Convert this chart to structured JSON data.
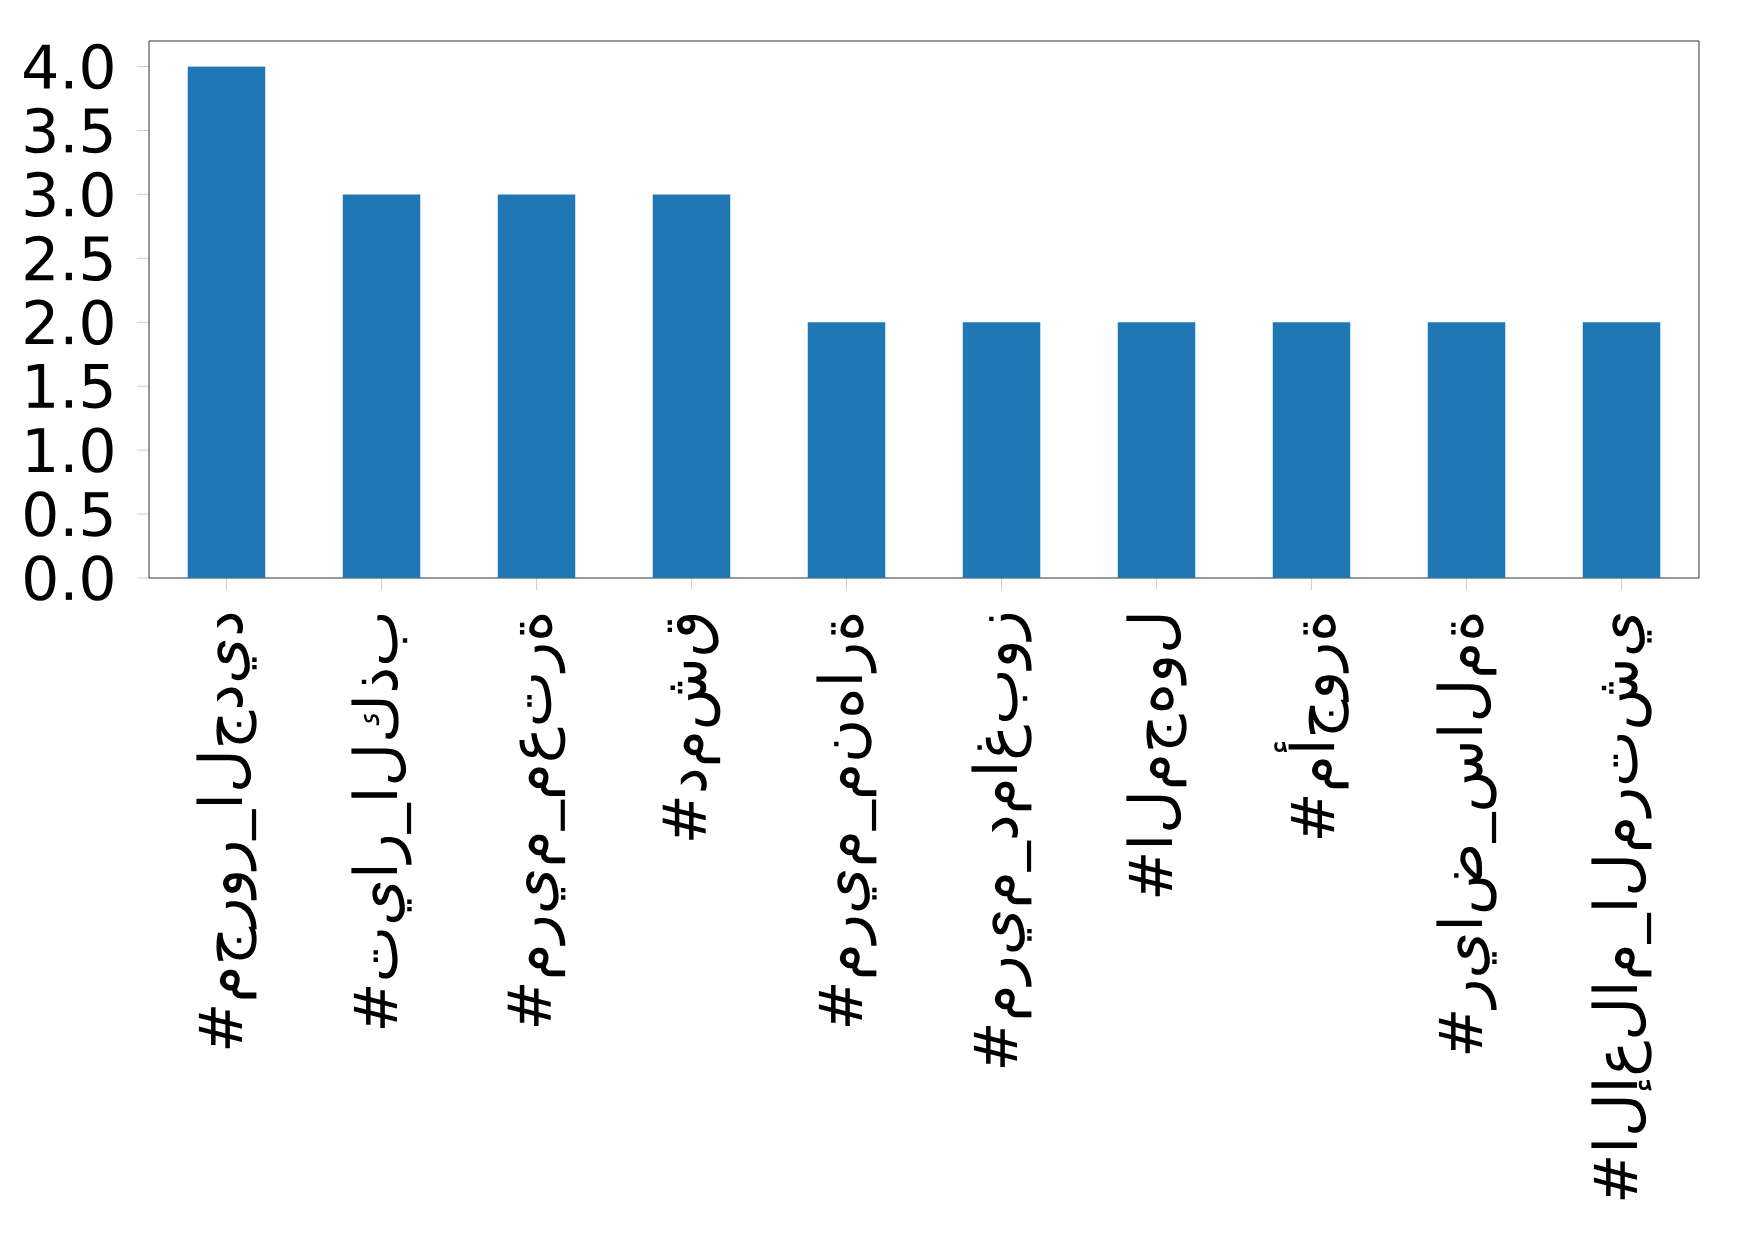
{
  "chart_data": {
    "type": "bar",
    "categories": [
      "#مجرور_الجديد",
      "#تيار_الكذب",
      "#مريم_معترة",
      "#دمشق",
      "#مريم_منهارة",
      "#مريم_دماغبوز",
      "#المجهول",
      "#مأجورة",
      "#رياض_سالمة",
      "#الإعلام_المرتشي"
    ],
    "values": [
      4,
      3,
      3,
      3,
      2,
      2,
      2,
      2,
      2,
      2
    ],
    "color": "#1f77b4",
    "ylim": [
      0,
      4.2
    ],
    "yticks": [
      {
        "value": 0,
        "label": "0.0"
      },
      0.5,
      {
        "value": 1,
        "label": "1.0"
      },
      1.5,
      {
        "value": 2,
        "label": "2.0"
      },
      2.5,
      {
        "value": 3,
        "label": "3.0"
      },
      3.5,
      {
        "value": 4,
        "label": "4.0"
      }
    ],
    "grid": false
  }
}
